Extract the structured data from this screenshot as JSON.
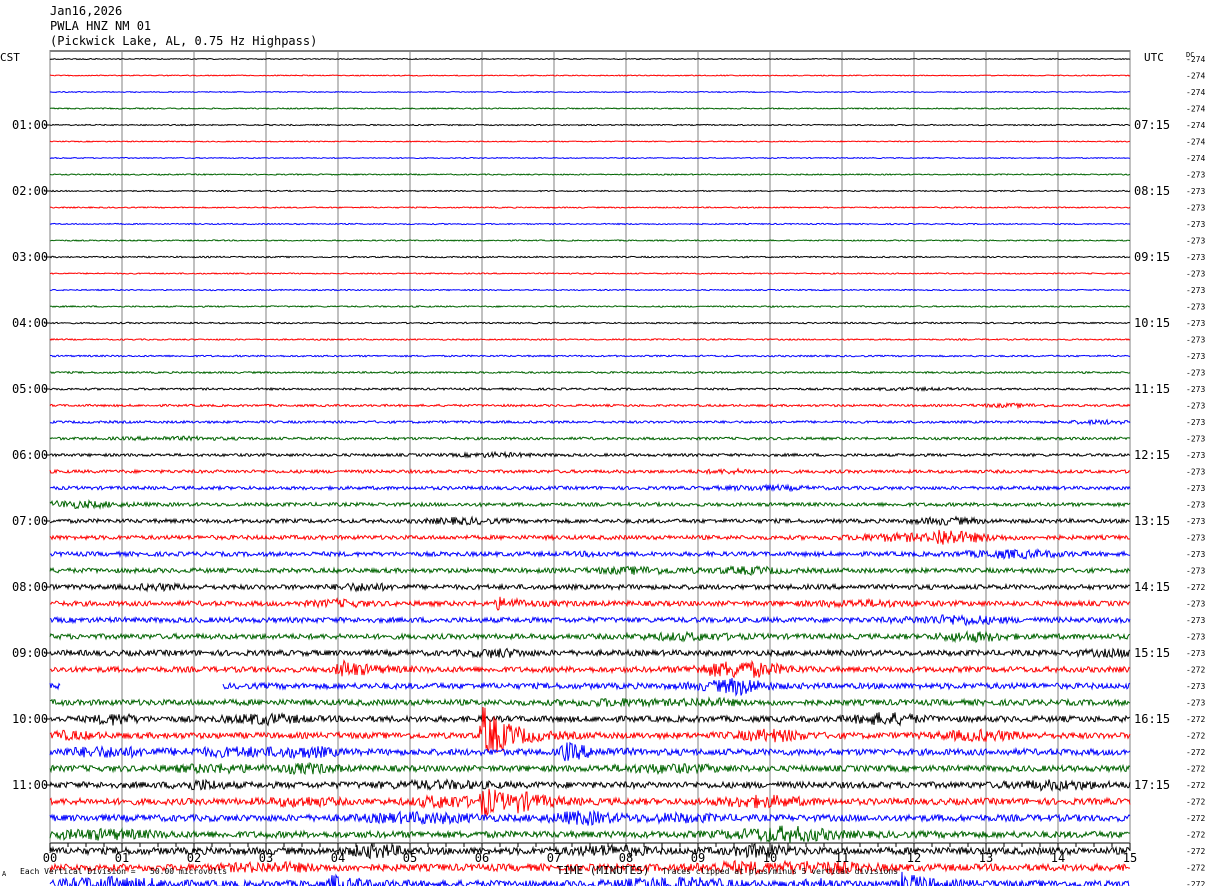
{
  "header": {
    "date": "Jan16,2026",
    "station": "PWLA HNZ NM 01",
    "location": "(Pickwick Lake, AL, 0.75 Hz Highpass)"
  },
  "chart_data": {
    "type": "line",
    "left_axis_label": "CST",
    "right_axis_label": "UTC",
    "dc_label": "DC",
    "xlabel": "TIME (MINUTES)",
    "x_ticks": [
      "00",
      "01",
      "02",
      "03",
      "04",
      "05",
      "06",
      "07",
      "08",
      "09",
      "10",
      "11",
      "12",
      "13",
      "14",
      "15"
    ],
    "xlim": [
      0,
      15
    ],
    "trace_colors": [
      "#000000",
      "#ff0000",
      "#0000ff",
      "#006400"
    ],
    "left_time_labels": [
      "01:00",
      "02:00",
      "03:00",
      "04:00",
      "05:00",
      "06:00",
      "07:00",
      "08:00",
      "09:00",
      "10:00",
      "11:00"
    ],
    "right_time_labels": [
      "07:15",
      "08:15",
      "09:15",
      "10:15",
      "11:15",
      "12:15",
      "13:15",
      "14:15",
      "15:15",
      "16:15",
      "17:15"
    ],
    "dc_offsets": [
      "-274",
      "-274",
      "-274",
      "-274",
      "-274",
      "-274",
      "-274",
      "-273",
      "-273",
      "-273",
      "-273",
      "-273",
      "-273",
      "-273",
      "-273",
      "-273",
      "-273",
      "-273",
      "-273",
      "-273",
      "-273",
      "-273",
      "-273",
      "-273",
      "-273",
      "-273",
      "-273",
      "-273",
      "-273",
      "-273",
      "-273",
      "-273",
      "-272",
      "-273",
      "-273",
      "-273",
      "-273",
      "-272",
      "-273",
      "-273",
      "-272",
      "-272",
      "-272",
      "-272",
      "-272",
      "-272",
      "-272",
      "-272",
      "-272",
      "-272",
      "-272",
      "-272"
    ],
    "noise_levels": [
      0.5,
      0.5,
      0.5,
      0.6,
      0.6,
      0.5,
      0.5,
      0.6,
      0.6,
      0.6,
      0.6,
      0.6,
      0.7,
      0.6,
      0.6,
      0.7,
      0.7,
      0.7,
      0.8,
      0.9,
      1.0,
      1.1,
      1.2,
      1.3,
      1.4,
      1.6,
      1.7,
      1.8,
      2.0,
      2.1,
      2.2,
      2.3,
      2.4,
      2.5,
      2.6,
      2.6,
      2.8,
      2.8,
      2.9,
      2.9,
      3.0,
      3.0,
      3.2,
      3.0,
      3.1,
      3.2,
      3.3,
      3.3,
      3.5,
      3.5,
      3.5,
      3.4
    ],
    "gaps": [
      {
        "trace": 38,
        "from_min": 0.15,
        "to_min": 2.4
      }
    ],
    "events": [
      {
        "trace": 41,
        "minute": 6.0,
        "amplitude": 28
      },
      {
        "trace": 45,
        "minute": 6.0,
        "amplitude": 14
      },
      {
        "trace": 42,
        "minute": 7.1,
        "amplitude": 9
      },
      {
        "trace": 37,
        "minute": 4.0,
        "amplitude": 9
      },
      {
        "trace": 50,
        "minute": 11.8,
        "amplitude": 10
      },
      {
        "trace": 50,
        "minute": 3.9,
        "amplitude": 8
      },
      {
        "trace": 45,
        "minute": 6.5,
        "amplitude": 6
      },
      {
        "trace": 33,
        "minute": 6.2,
        "amplitude": 5
      },
      {
        "trace": 29,
        "minute": 12.3,
        "amplitude": 7
      }
    ]
  },
  "footer": {
    "scale_note": "Each Vertical Division =   50.00 microvolts",
    "clip_note": "Traces clipped at plus/minus 5 vertical divisions",
    "corner_mark": "A"
  }
}
